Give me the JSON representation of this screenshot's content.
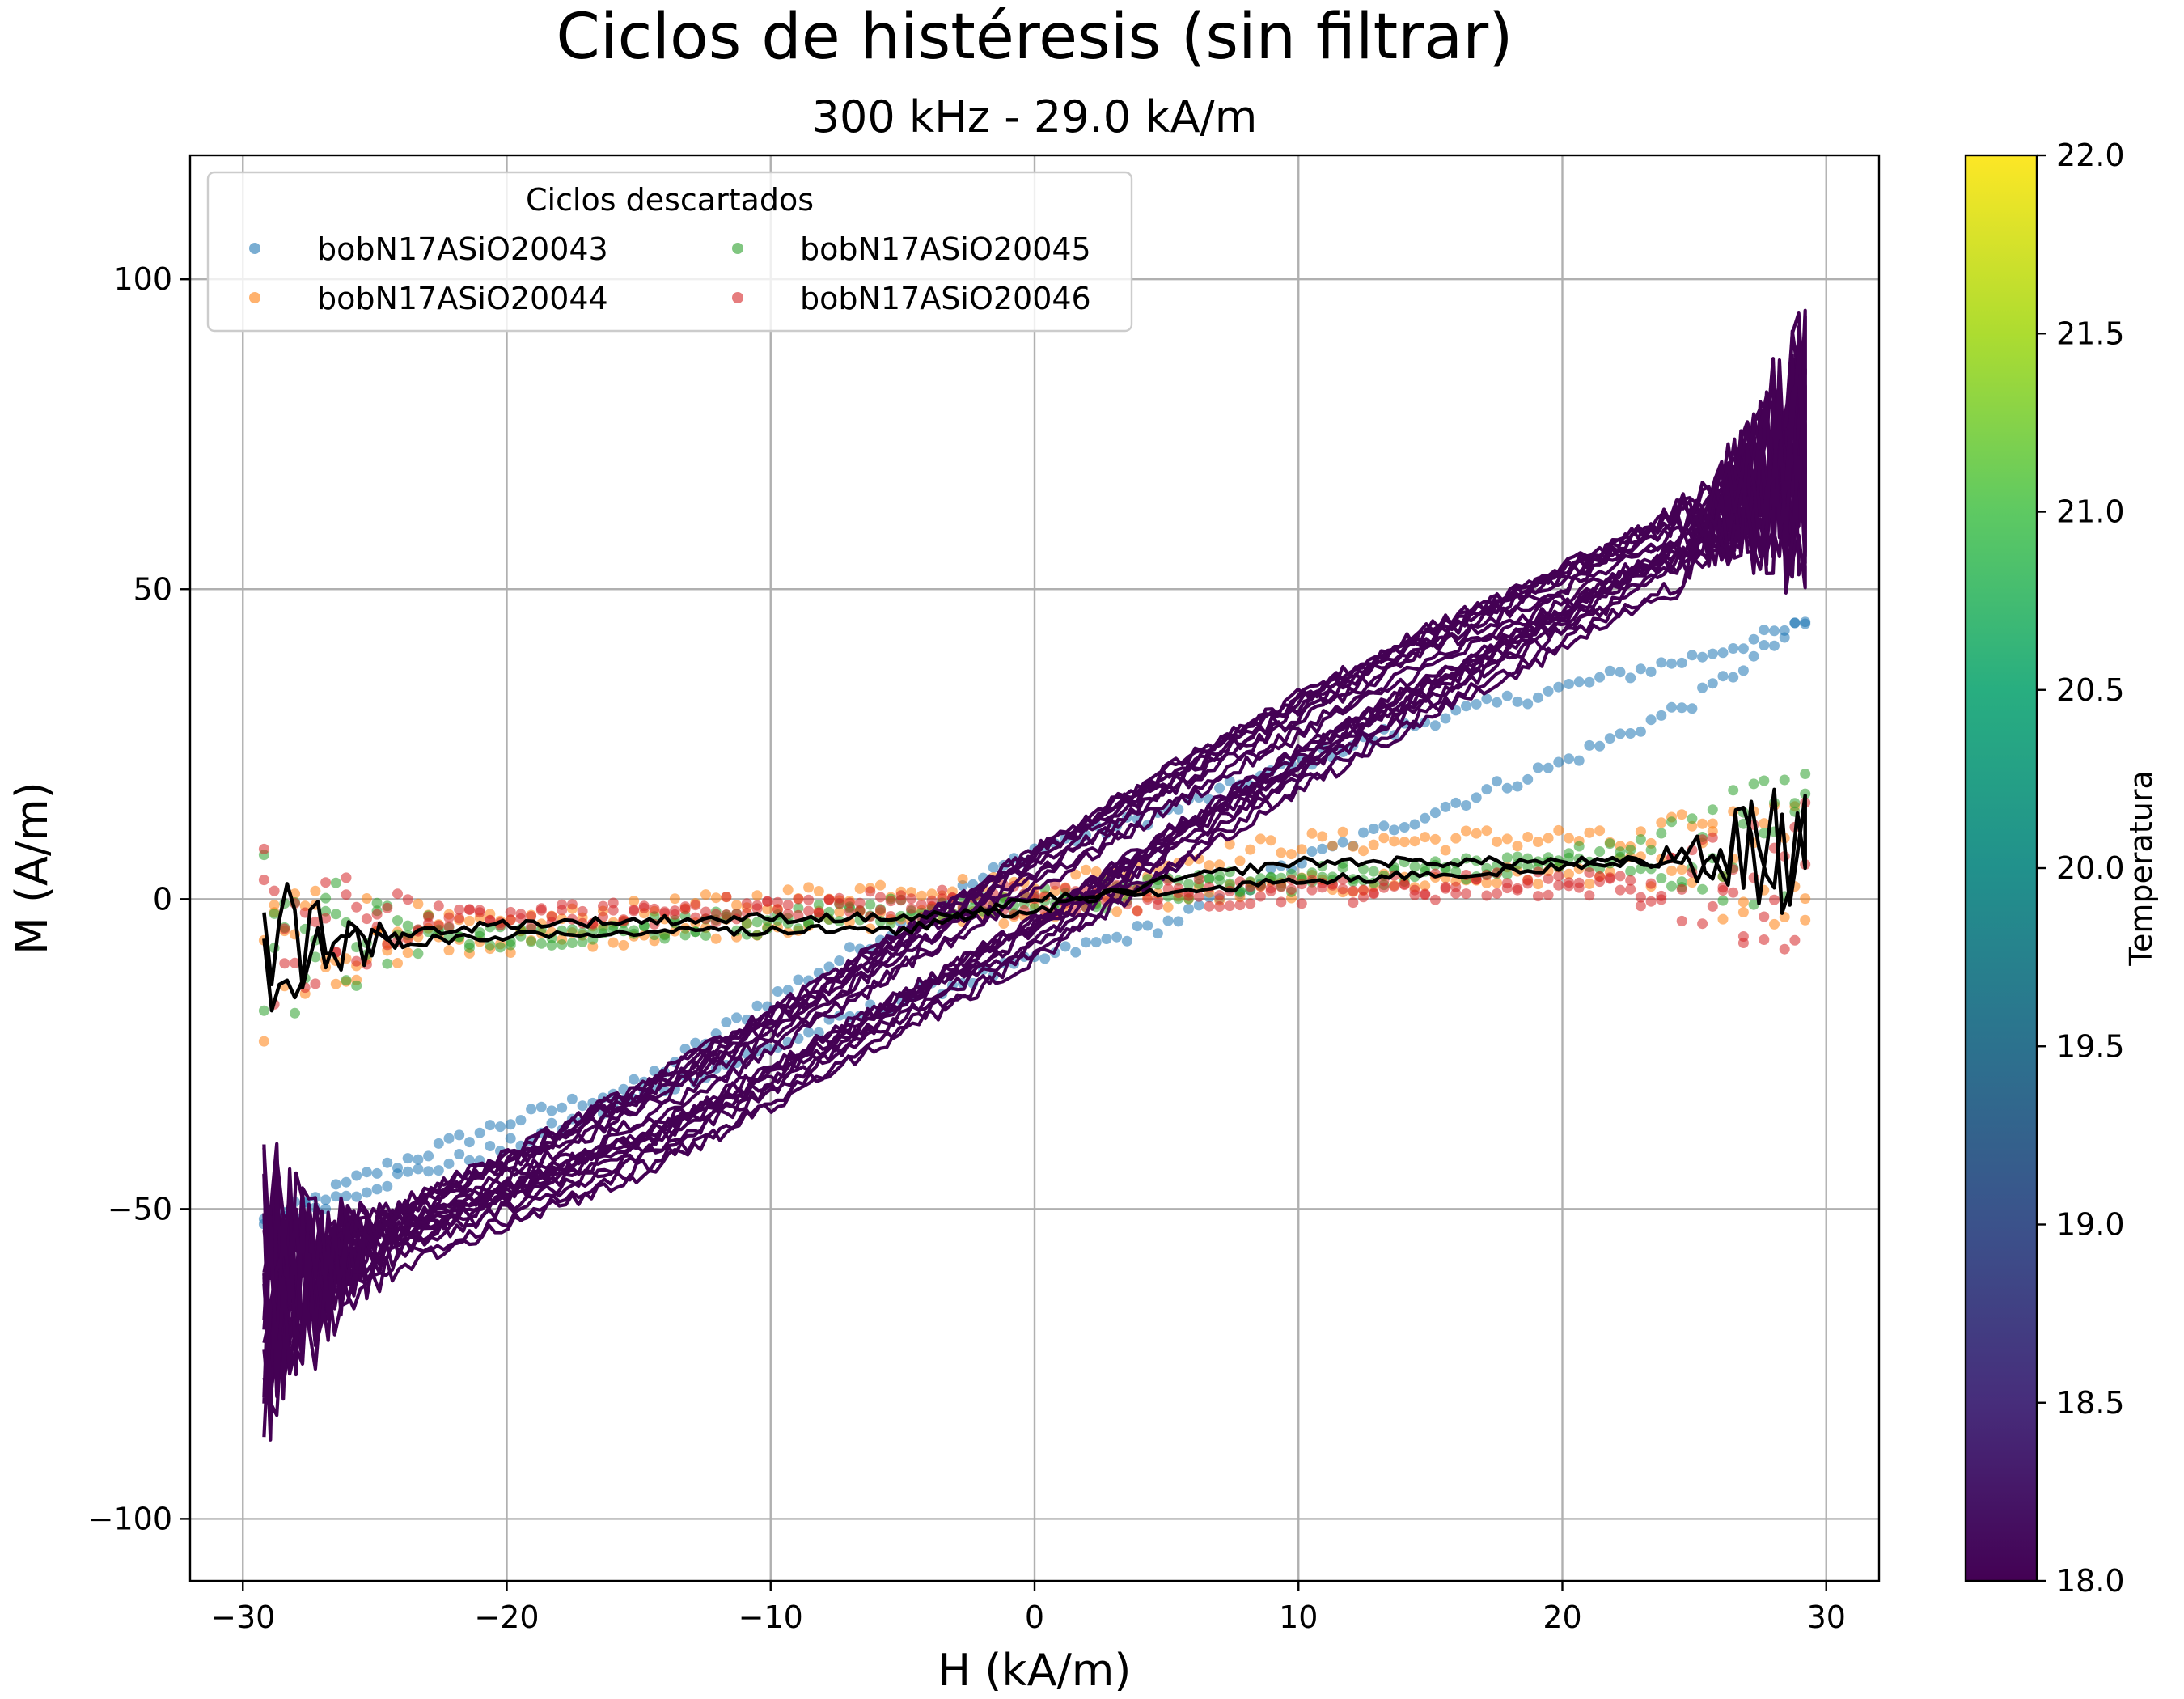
{
  "chart_data": {
    "type": "scatter",
    "title": "Ciclos de histéresis (sin filtrar)",
    "subtitle": "300 kHz - 29.0 kA/m",
    "xlabel": "H (kA/m)",
    "ylabel": "M (A/m)",
    "xlim": [
      -32,
      32
    ],
    "ylim": [
      -110,
      120
    ],
    "xticks": [
      -30,
      -20,
      -10,
      0,
      10,
      20,
      30
    ],
    "xtick_labels": [
      "−30",
      "−20",
      "−10",
      "0",
      "10",
      "20",
      "30"
    ],
    "yticks": [
      -100,
      -50,
      0,
      50,
      100
    ],
    "ytick_labels": [
      "−100",
      "−50",
      "0",
      "50",
      "100"
    ],
    "grid": true,
    "legend": {
      "title": "Ciclos descartados",
      "location": "top-left",
      "entries": [
        {
          "name": "bobN17ASiO20043",
          "color": "#1f77b4"
        },
        {
          "name": "bobN17ASiO20045",
          "color": "#2ca02c"
        },
        {
          "name": "bobN17ASiO20044",
          "color": "#ff7f0e"
        },
        {
          "name": "bobN17ASiO20046",
          "color": "#d62728"
        }
      ]
    },
    "discarded_series": [
      {
        "name": "bobN17ASiO20043",
        "color": "#1f77b4",
        "marker": "point",
        "upper_branch": [
          [
            -29,
            -52
          ],
          [
            -25,
            -44
          ],
          [
            -20,
            -36
          ],
          [
            -15,
            -30
          ],
          [
            -10,
            -16
          ],
          [
            -5,
            -4
          ],
          [
            0,
            8
          ],
          [
            5,
            14
          ],
          [
            10,
            22
          ],
          [
            15,
            29
          ],
          [
            20,
            34
          ],
          [
            25,
            39
          ],
          [
            29,
            44
          ]
        ],
        "lower_branch": [
          [
            29,
            44
          ],
          [
            25,
            32
          ],
          [
            20,
            22
          ],
          [
            15,
            14
          ],
          [
            10,
            6
          ],
          [
            5,
            -4
          ],
          [
            0,
            -10
          ],
          [
            -5,
            -16
          ],
          [
            -10,
            -24
          ],
          [
            -15,
            -32
          ],
          [
            -20,
            -40
          ],
          [
            -25,
            -46
          ],
          [
            -29,
            -52
          ]
        ]
      },
      {
        "name": "bobN17ASiO20044",
        "color": "#ff7f0e",
        "marker": "point",
        "upper_branch": [
          [
            -29,
            -6
          ],
          [
            -20,
            -4
          ],
          [
            -10,
            0
          ],
          [
            -5,
            2
          ],
          [
            0,
            2
          ],
          [
            5,
            6
          ],
          [
            10,
            9
          ],
          [
            20,
            10
          ],
          [
            29,
            6
          ]
        ],
        "lower_branch": [
          [
            29,
            6
          ],
          [
            20,
            4
          ],
          [
            10,
            2
          ],
          [
            5,
            0
          ],
          [
            0,
            -2
          ],
          [
            -5,
            -3
          ],
          [
            -10,
            -4
          ],
          [
            -20,
            -7
          ],
          [
            -29,
            -9
          ]
        ]
      },
      {
        "name": "bobN17ASiO20045",
        "color": "#2ca02c",
        "marker": "point",
        "upper_branch": [
          [
            -29,
            -6
          ],
          [
            -20,
            -6
          ],
          [
            -10,
            -3
          ],
          [
            0,
            0
          ],
          [
            10,
            4
          ],
          [
            20,
            7
          ],
          [
            29,
            9
          ]
        ],
        "lower_branch": [
          [
            29,
            9
          ],
          [
            20,
            6
          ],
          [
            10,
            3
          ],
          [
            0,
            -1
          ],
          [
            -10,
            -4
          ],
          [
            -20,
            -6
          ],
          [
            -29,
            -7
          ]
        ]
      },
      {
        "name": "bobN17ASiO20046",
        "color": "#d62728",
        "marker": "point",
        "upper_branch": [
          [
            -29,
            -5
          ],
          [
            -20,
            -3
          ],
          [
            -10,
            -1
          ],
          [
            0,
            1
          ],
          [
            10,
            2
          ],
          [
            20,
            3
          ],
          [
            29,
            3
          ]
        ],
        "lower_branch": [
          [
            29,
            3
          ],
          [
            20,
            2
          ],
          [
            10,
            1
          ],
          [
            0,
            -1
          ],
          [
            -10,
            -2
          ],
          [
            -20,
            -3
          ],
          [
            -29,
            -5
          ]
        ]
      }
    ],
    "kept_cycles": {
      "color": "#440154",
      "count": 10,
      "upper_branch": [
        [
          -29,
          -65
        ],
        [
          -25,
          -55
        ],
        [
          -20,
          -45
        ],
        [
          -15,
          -34
        ],
        [
          -10,
          -22
        ],
        [
          -5,
          -9
        ],
        [
          0,
          4
        ],
        [
          5,
          17
        ],
        [
          10,
          29
        ],
        [
          15,
          40
        ],
        [
          20,
          50
        ],
        [
          25,
          60
        ],
        [
          29,
          70
        ]
      ],
      "lower_branch": [
        [
          29,
          70
        ],
        [
          25,
          55
        ],
        [
          20,
          43
        ],
        [
          15,
          32
        ],
        [
          10,
          20
        ],
        [
          5,
          7
        ],
        [
          0,
          -7
        ],
        [
          -5,
          -19
        ],
        [
          -10,
          -31
        ],
        [
          -15,
          -42
        ],
        [
          -20,
          -50
        ],
        [
          -25,
          -58
        ],
        [
          -29,
          -65
        ]
      ]
    },
    "mean_cycle": {
      "color": "#000000",
      "upper_branch": [
        [
          -29,
          -10
        ],
        [
          -25,
          -6
        ],
        [
          -20,
          -4
        ],
        [
          -10,
          -3
        ],
        [
          -5,
          -3
        ],
        [
          0,
          -2
        ],
        [
          5,
          3
        ],
        [
          10,
          6
        ],
        [
          15,
          6
        ],
        [
          20,
          6
        ],
        [
          25,
          6
        ],
        [
          29,
          9
        ]
      ],
      "lower_branch": [
        [
          29,
          9
        ],
        [
          25,
          7
        ],
        [
          20,
          5
        ],
        [
          15,
          4
        ],
        [
          10,
          3
        ],
        [
          5,
          1
        ],
        [
          0,
          0
        ],
        [
          -5,
          -5
        ],
        [
          -10,
          -5
        ],
        [
          -20,
          -6
        ],
        [
          -25,
          -7
        ],
        [
          -29,
          -10
        ]
      ]
    },
    "colorbar": {
      "label": "Temperatura",
      "colormap": "viridis",
      "range": [
        18.0,
        22.0
      ],
      "ticks": [
        18.0,
        18.5,
        19.0,
        19.5,
        20.0,
        20.5,
        21.0,
        21.5,
        22.0
      ],
      "tick_labels": [
        "18.0",
        "18.5",
        "19.0",
        "19.5",
        "20.0",
        "20.5",
        "21.0",
        "21.5",
        "22.0"
      ]
    }
  }
}
